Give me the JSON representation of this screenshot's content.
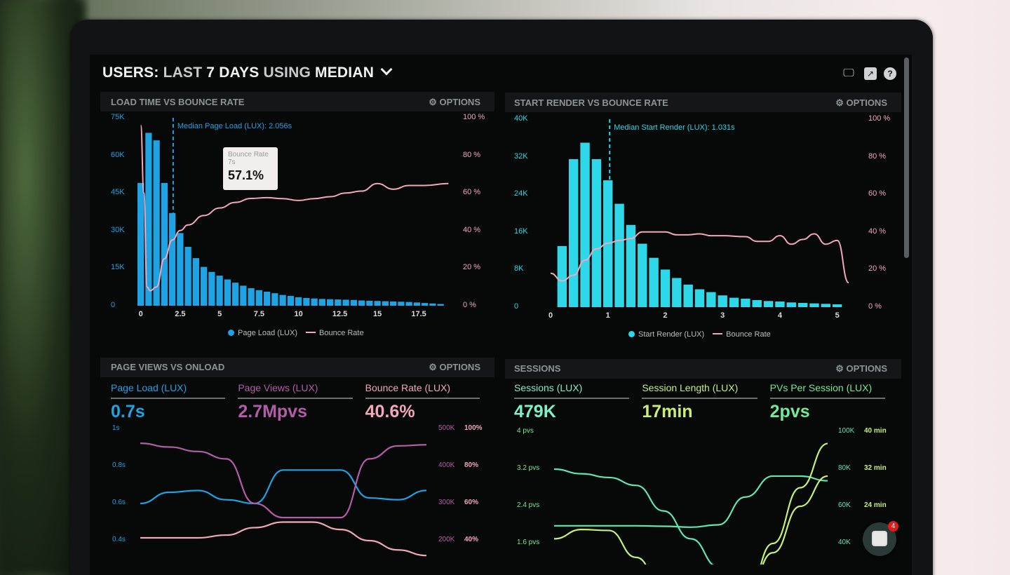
{
  "header": {
    "title_parts": [
      "USERS:",
      "LAST",
      "7 DAYS",
      "USING",
      "MEDIAN"
    ],
    "icons": [
      "monitor-icon",
      "share-icon",
      "help-icon"
    ]
  },
  "colors": {
    "blue": "#1ea3e4",
    "cyan": "#2fd8e8",
    "pink": "#f2a7ba",
    "purple": "#b55ca9",
    "mint": "#5fe6b2",
    "lime": "#c8ee7a",
    "green": "#72ea96"
  },
  "options_label": "OPTIONS",
  "chart_data": [
    {
      "type": "bar",
      "title": "LOAD TIME VS BOUNCE RATE",
      "annotation": "Median Page Load (LUX): 2.056s",
      "median": 2.056,
      "y_ticks": [
        "0",
        "15K",
        "30K",
        "45K",
        "60K",
        "75K"
      ],
      "y2_ticks": [
        "0 %",
        "20 %",
        "40 %",
        "60 %",
        "80 %",
        "100 %"
      ],
      "x_ticks": [
        "0",
        "2.5",
        "5",
        "7.5",
        "10",
        "12.5",
        "15",
        "17.5"
      ],
      "ylim": [
        0,
        75
      ],
      "y2lim": [
        0,
        100
      ],
      "xlim": [
        -0.25,
        19.75
      ],
      "bin_width": 0.5,
      "series": [
        {
          "name": "Page Load (LUX)",
          "kind": "bar",
          "values": [
            49,
            69,
            66,
            49,
            37,
            29,
            23.5,
            19,
            15.5,
            13.5,
            12,
            10.5,
            9.2,
            8,
            7,
            6.2,
            5.6,
            5,
            4.3,
            3.9,
            3.4,
            3.1,
            2.9,
            2.7,
            2.6,
            2.5,
            2.4,
            2.3,
            2.1,
            2,
            1.9,
            1.8,
            1.7,
            1.6,
            1.5,
            1.3,
            1.1,
            0.9,
            0.7
          ]
        },
        {
          "name": "Bounce Rate",
          "kind": "line",
          "points": [
            [
              0,
              96
            ],
            [
              0.2,
              60
            ],
            [
              0.4,
              10
            ],
            [
              0.6,
              8
            ],
            [
              1,
              10
            ],
            [
              1.5,
              25
            ],
            [
              2,
              35
            ],
            [
              2.5,
              40
            ],
            [
              3,
              43
            ],
            [
              4,
              48
            ],
            [
              5,
              52
            ],
            [
              6,
              55
            ],
            [
              7,
              57.1
            ],
            [
              8,
              57.5
            ],
            [
              9,
              57
            ],
            [
              10,
              56
            ],
            [
              11,
              57
            ],
            [
              12,
              58
            ],
            [
              13,
              60
            ],
            [
              14,
              61
            ],
            [
              15,
              65
            ],
            [
              16,
              62
            ],
            [
              17,
              64
            ],
            [
              18,
              64
            ],
            [
              19.5,
              65
            ]
          ]
        }
      ],
      "tooltip": {
        "title": "Bounce Rate",
        "x": "7s",
        "value": "57.1%"
      }
    },
    {
      "type": "bar",
      "title": "START RENDER VS BOUNCE RATE",
      "annotation": "Median Start Render (LUX): 1.031s",
      "median": 1.031,
      "y_ticks": [
        "0",
        "8K",
        "16K",
        "24K",
        "32K",
        "40K"
      ],
      "y2_ticks": [
        "0 %",
        "20 %",
        "40 %",
        "60 %",
        "80 %",
        "100 %"
      ],
      "x_ticks": [
        "0",
        "1",
        "2",
        "3",
        "4",
        "5"
      ],
      "ylim": [
        0,
        40
      ],
      "y2lim": [
        0,
        100
      ],
      "xlim": [
        0,
        5.2
      ],
      "bin_width": 0.2,
      "series": [
        {
          "name": "Start Render (LUX)",
          "kind": "bar",
          "values": [
            13,
            31.5,
            35,
            31.5,
            27,
            22,
            17.5,
            13.5,
            10.5,
            8,
            6.2,
            4.8,
            3.8,
            3.2,
            2.5,
            2,
            1.8,
            1.5,
            1.3,
            1.2,
            1,
            0.9,
            0.8,
            0.7,
            0.6
          ]
        },
        {
          "name": "Bounce Rate",
          "kind": "line",
          "points": [
            [
              0,
              18
            ],
            [
              0.2,
              14
            ],
            [
              0.4,
              17
            ],
            [
              0.6,
              25
            ],
            [
              0.8,
              31
            ],
            [
              1,
              34
            ],
            [
              1.2,
              35.5
            ],
            [
              1.4,
              36.5
            ],
            [
              1.6,
              40
            ],
            [
              1.8,
              40
            ],
            [
              2,
              40
            ],
            [
              2.2,
              38.5
            ],
            [
              2.4,
              38.5
            ],
            [
              2.6,
              39
            ],
            [
              2.8,
              38
            ],
            [
              3,
              38
            ],
            [
              3.4,
              37.5
            ],
            [
              3.6,
              35
            ],
            [
              3.8,
              35
            ],
            [
              4,
              38
            ],
            [
              4.2,
              33.5
            ],
            [
              4.4,
              36
            ],
            [
              4.6,
              39
            ],
            [
              4.8,
              33.5
            ],
            [
              5,
              35.5
            ],
            [
              5.2,
              13
            ]
          ]
        }
      ]
    },
    {
      "type": "line",
      "title": "PAGE VIEWS VS ONLOAD",
      "kpis": [
        {
          "label": "Page Load (LUX)",
          "value": "0.7s"
        },
        {
          "label": "Page Views (LUX)",
          "value": "2.7Mpvs"
        },
        {
          "label": "Bounce Rate (LUX)",
          "value": "40.6%"
        }
      ],
      "y_ticks": [
        "1s",
        "0.8s",
        "0.6s",
        "0.4s"
      ],
      "y2_ticks": [
        "500K",
        "400K",
        "300K",
        "200K"
      ],
      "y3_ticks": [
        "100%",
        "80%",
        "60%",
        "40%"
      ],
      "series": [
        {
          "kpi": 0,
          "axis": "s",
          "range": [
            0.4,
            1
          ],
          "values": [
            0.6,
            0.66,
            0.67,
            0.62,
            0.6,
            0.78,
            0.78,
            0.78,
            0.63,
            0.62,
            0.67
          ]
        },
        {
          "kpi": 1,
          "axis": "K",
          "range": [
            200,
            500
          ],
          "values": [
            462,
            452,
            440,
            420,
            300,
            262,
            262,
            262,
            420,
            455,
            458
          ]
        },
        {
          "kpi": 2,
          "axis": "%",
          "range": [
            40,
            100
          ],
          "values": [
            41.5,
            41.5,
            41.5,
            43,
            47,
            50,
            50,
            46,
            40,
            35,
            32
          ]
        }
      ]
    },
    {
      "type": "line",
      "title": "SESSIONS",
      "kpis": [
        {
          "label": "Sessions (LUX)",
          "value": "479K"
        },
        {
          "label": "Session Length (LUX)",
          "value": "17min"
        },
        {
          "label": "PVs Per Session (LUX)",
          "value": "2pvs"
        }
      ],
      "y_ticks": [
        "4 pvs",
        "3.2 pvs",
        "2.4 pvs",
        "1.6 pvs"
      ],
      "y2_ticks": [
        "100K",
        "80K",
        "60K",
        "40K"
      ],
      "y3_ticks": [
        "40 min",
        "32 min",
        "24 min"
      ],
      "series": [
        {
          "kpi": 2,
          "range": [
            1.6,
            4
          ],
          "values": [
            3.2,
            3.1,
            3.02,
            2.85,
            2.3,
            1.7,
            1.1,
            0.7,
            0.7,
            null,
            null
          ]
        },
        {
          "kpi": 2,
          "range": [
            1.6,
            4
          ],
          "values": [
            1.98,
            1.98,
            1.98,
            1.98,
            1.97,
            1.95,
            2.0,
            2.6,
            3.05,
            3.05,
            2.95
          ]
        },
        {
          "kpi": 0,
          "range": [
            1.6,
            4
          ],
          "values": [
            null,
            null,
            null,
            null,
            null,
            null,
            null,
            0.4,
            1.4,
            2.4,
            3.05
          ]
        },
        {
          "kpi": 1,
          "range": [
            1.6,
            4
          ],
          "values": [
            1.7,
            1.9,
            1.88,
            1.3,
            0.6,
            null,
            null,
            0.4,
            1.6,
            2.8,
            3.75
          ]
        }
      ]
    }
  ],
  "chat": {
    "badge": "4"
  }
}
